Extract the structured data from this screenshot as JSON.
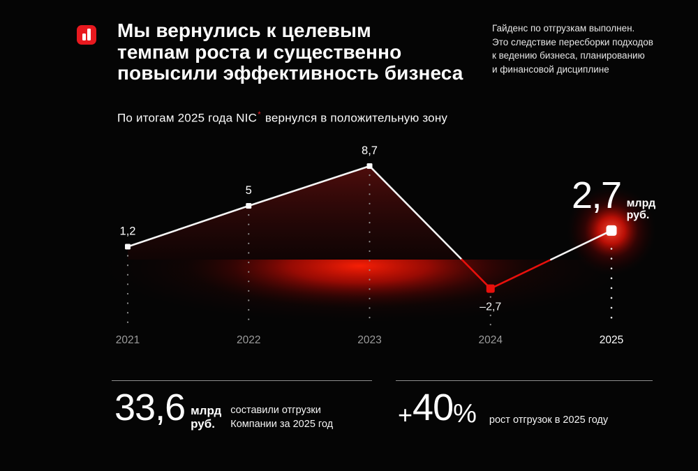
{
  "slide": {
    "title_lines": [
      "Мы вернулись к целевым",
      "темпам роста и существенно",
      "повысили эффективность бизнеса"
    ],
    "note_lines": [
      "Гайденс по отгрузкам выполнен.",
      "Это следствие пересборки подходов",
      "к ведению бизнеса, планированию",
      "и финансовой дисциплине"
    ],
    "subtitle": {
      "prefix": "По итогам 2025 года NIC",
      "footnote_mark": "*",
      "suffix": " вернулся в положительную зону"
    }
  },
  "chart_data": {
    "type": "line",
    "title": "По итогам 2025 года NIC* вернулся в положительную зону",
    "series_name": "NIC",
    "unit": "млрд руб.",
    "categories": [
      "2021",
      "2022",
      "2023",
      "2024",
      "2025"
    ],
    "values": [
      1.2,
      5,
      8.7,
      -2.7,
      2.7
    ],
    "point_labels": [
      "1,2",
      "5",
      "8,7",
      "–2,7",
      "2,7"
    ],
    "baseline": 0,
    "ylim": [
      -4,
      10
    ],
    "grid": false,
    "legend": "none",
    "positive_line_color": "#f5f5f5",
    "negative_line_color": "#e8100c",
    "axis_label_color": "#9c9c9c",
    "axis_highlight_category": "2025",
    "highlight_point": {
      "category": "2025",
      "value_label": "2,7",
      "unit_lines": [
        "млрд",
        "руб."
      ]
    }
  },
  "stats": [
    {
      "value": "33,6",
      "unit_lines": [
        "млрд",
        "руб."
      ],
      "desc_lines": [
        "составили отгрузки",
        "Компании за 2025 год"
      ]
    },
    {
      "prefix": "+",
      "value": "40",
      "suffix": "%",
      "desc_lines": [
        "рост отгрузок в 2025 году"
      ]
    }
  ],
  "colors": {
    "background": "#050505",
    "brand_red": "#e8191f",
    "chart_red": "#e8100c",
    "glow_red": "#ff2005",
    "muted_text": "#9c9c9c",
    "divider": "#8d8d8d"
  }
}
